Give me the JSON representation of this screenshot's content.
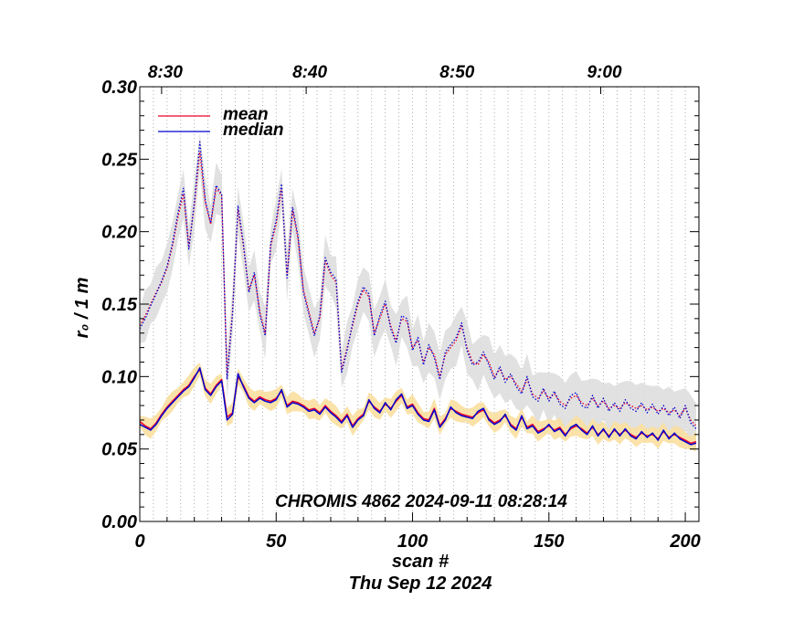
{
  "chart_data": {
    "type": "line",
    "xlabel": "scan #",
    "subtitle": "Thu Sep 12 2024",
    "ylabel": "r₀ / 1 m",
    "xlim": [
      0,
      205
    ],
    "ylim": [
      0.0,
      0.3
    ],
    "grid": "vertical dotted lines every 5 scans",
    "x_ticks": [
      0,
      50,
      100,
      150,
      200
    ],
    "x_tick_labels": [
      "0",
      "50",
      "100",
      "150",
      "200"
    ],
    "y_ticks": [
      0.0,
      0.05,
      0.1,
      0.15,
      0.2,
      0.25,
      0.3
    ],
    "y_tick_labels": [
      "0.00",
      "0.05",
      "0.10",
      "0.15",
      "0.20",
      "0.25",
      "0.30"
    ],
    "top_axis": {
      "positions": [
        8,
        61,
        115,
        169
      ],
      "labels": [
        "8:30",
        "8:40",
        "8:50",
        "9:00"
      ]
    },
    "annotation": "CHROMIS 4862 2024-09-11 08:28:14",
    "legend": {
      "position": "top-left",
      "entries": [
        {
          "label": "mean",
          "color": "#e8002a"
        },
        {
          "label": "median",
          "color": "#0000d0"
        }
      ]
    },
    "colors": {
      "mean": "#e8002a",
      "median": "#0000d0",
      "band_low": "#f9dfa0",
      "band_high": "#dedede"
    },
    "x": [
      0,
      2,
      4,
      6,
      8,
      10,
      12,
      14,
      16,
      18,
      20,
      22,
      24,
      26,
      28,
      30,
      32,
      34,
      36,
      38,
      40,
      42,
      44,
      46,
      48,
      50,
      52,
      54,
      56,
      58,
      60,
      62,
      64,
      66,
      68,
      70,
      72,
      74,
      76,
      78,
      80,
      82,
      84,
      86,
      88,
      90,
      92,
      94,
      96,
      98,
      100,
      102,
      104,
      106,
      108,
      110,
      112,
      114,
      116,
      118,
      120,
      122,
      124,
      126,
      128,
      130,
      132,
      134,
      136,
      138,
      140,
      142,
      144,
      146,
      148,
      150,
      152,
      154,
      156,
      158,
      160,
      162,
      164,
      166,
      168,
      170,
      172,
      174,
      176,
      178,
      180,
      182,
      184,
      186,
      188,
      190,
      192,
      194,
      196,
      198,
      200,
      202,
      204
    ],
    "series": [
      {
        "name": "mean (low layer)",
        "style": "solid",
        "values": [
          0.069,
          0.066,
          0.064,
          0.068,
          0.074,
          0.079,
          0.083,
          0.087,
          0.091,
          0.094,
          0.1,
          0.105,
          0.092,
          0.088,
          0.094,
          0.098,
          0.072,
          0.075,
          0.1,
          0.094,
          0.086,
          0.083,
          0.086,
          0.084,
          0.083,
          0.085,
          0.09,
          0.08,
          0.083,
          0.082,
          0.08,
          0.077,
          0.078,
          0.075,
          0.08,
          0.076,
          0.073,
          0.069,
          0.074,
          0.066,
          0.071,
          0.074,
          0.083,
          0.079,
          0.076,
          0.081,
          0.078,
          0.083,
          0.087,
          0.079,
          0.081,
          0.075,
          0.071,
          0.07,
          0.078,
          0.066,
          0.071,
          0.078,
          0.076,
          0.074,
          0.073,
          0.072,
          0.075,
          0.077,
          0.071,
          0.068,
          0.07,
          0.073,
          0.067,
          0.064,
          0.072,
          0.065,
          0.067,
          0.062,
          0.064,
          0.066,
          0.063,
          0.065,
          0.06,
          0.064,
          0.066,
          0.064,
          0.061,
          0.065,
          0.06,
          0.063,
          0.059,
          0.063,
          0.06,
          0.063,
          0.06,
          0.058,
          0.061,
          0.059,
          0.06,
          0.057,
          0.062,
          0.058,
          0.06,
          0.058,
          0.056,
          0.054,
          0.055
        ]
      },
      {
        "name": "median (low layer)",
        "style": "solid",
        "values": [
          0.067,
          0.065,
          0.063,
          0.067,
          0.073,
          0.078,
          0.082,
          0.086,
          0.09,
          0.093,
          0.099,
          0.106,
          0.091,
          0.087,
          0.093,
          0.097,
          0.07,
          0.074,
          0.102,
          0.093,
          0.085,
          0.082,
          0.085,
          0.083,
          0.082,
          0.084,
          0.091,
          0.079,
          0.082,
          0.081,
          0.079,
          0.076,
          0.077,
          0.074,
          0.079,
          0.075,
          0.072,
          0.068,
          0.073,
          0.065,
          0.07,
          0.073,
          0.084,
          0.078,
          0.075,
          0.082,
          0.077,
          0.084,
          0.088,
          0.078,
          0.08,
          0.074,
          0.07,
          0.069,
          0.077,
          0.065,
          0.07,
          0.079,
          0.075,
          0.073,
          0.072,
          0.071,
          0.076,
          0.078,
          0.07,
          0.067,
          0.069,
          0.074,
          0.066,
          0.063,
          0.073,
          0.064,
          0.066,
          0.061,
          0.063,
          0.067,
          0.062,
          0.064,
          0.059,
          0.065,
          0.067,
          0.063,
          0.06,
          0.066,
          0.059,
          0.064,
          0.058,
          0.064,
          0.059,
          0.064,
          0.059,
          0.057,
          0.062,
          0.058,
          0.061,
          0.056,
          0.063,
          0.057,
          0.061,
          0.057,
          0.055,
          0.053,
          0.054
        ]
      },
      {
        "name": "mean (high layer)",
        "style": "dotted",
        "values": [
          0.135,
          0.142,
          0.15,
          0.158,
          0.165,
          0.175,
          0.19,
          0.21,
          0.226,
          0.19,
          0.218,
          0.255,
          0.22,
          0.205,
          0.23,
          0.225,
          0.1,
          0.145,
          0.215,
          0.19,
          0.16,
          0.17,
          0.145,
          0.13,
          0.19,
          0.205,
          0.23,
          0.17,
          0.215,
          0.195,
          0.16,
          0.145,
          0.13,
          0.14,
          0.18,
          0.17,
          0.165,
          0.105,
          0.12,
          0.135,
          0.15,
          0.16,
          0.155,
          0.13,
          0.14,
          0.15,
          0.135,
          0.125,
          0.14,
          0.138,
          0.12,
          0.125,
          0.11,
          0.12,
          0.115,
          0.1,
          0.115,
          0.12,
          0.125,
          0.135,
          0.12,
          0.11,
          0.108,
          0.115,
          0.11,
          0.1,
          0.105,
          0.098,
          0.1,
          0.095,
          0.09,
          0.098,
          0.088,
          0.085,
          0.09,
          0.085,
          0.088,
          0.083,
          0.08,
          0.085,
          0.087,
          0.082,
          0.08,
          0.085,
          0.08,
          0.083,
          0.078,
          0.08,
          0.078,
          0.082,
          0.08,
          0.078,
          0.08,
          0.077,
          0.079,
          0.076,
          0.078,
          0.075,
          0.077,
          0.073,
          0.078,
          0.07,
          0.066
        ]
      },
      {
        "name": "median (high layer)",
        "style": "dotted",
        "values": [
          0.133,
          0.14,
          0.149,
          0.157,
          0.166,
          0.176,
          0.192,
          0.213,
          0.23,
          0.188,
          0.22,
          0.262,
          0.222,
          0.206,
          0.232,
          0.226,
          0.098,
          0.143,
          0.218,
          0.192,
          0.158,
          0.172,
          0.143,
          0.128,
          0.192,
          0.208,
          0.233,
          0.168,
          0.217,
          0.197,
          0.158,
          0.143,
          0.128,
          0.142,
          0.182,
          0.172,
          0.167,
          0.103,
          0.118,
          0.137,
          0.152,
          0.162,
          0.157,
          0.128,
          0.142,
          0.152,
          0.133,
          0.123,
          0.142,
          0.14,
          0.118,
          0.127,
          0.108,
          0.122,
          0.113,
          0.098,
          0.117,
          0.122,
          0.127,
          0.137,
          0.118,
          0.108,
          0.11,
          0.117,
          0.108,
          0.098,
          0.107,
          0.096,
          0.102,
          0.093,
          0.088,
          0.1,
          0.086,
          0.083,
          0.092,
          0.083,
          0.09,
          0.081,
          0.078,
          0.087,
          0.089,
          0.08,
          0.078,
          0.087,
          0.078,
          0.085,
          0.076,
          0.082,
          0.076,
          0.084,
          0.078,
          0.076,
          0.082,
          0.075,
          0.081,
          0.074,
          0.08,
          0.073,
          0.079,
          0.071,
          0.08,
          0.068,
          0.064
        ]
      }
    ]
  }
}
